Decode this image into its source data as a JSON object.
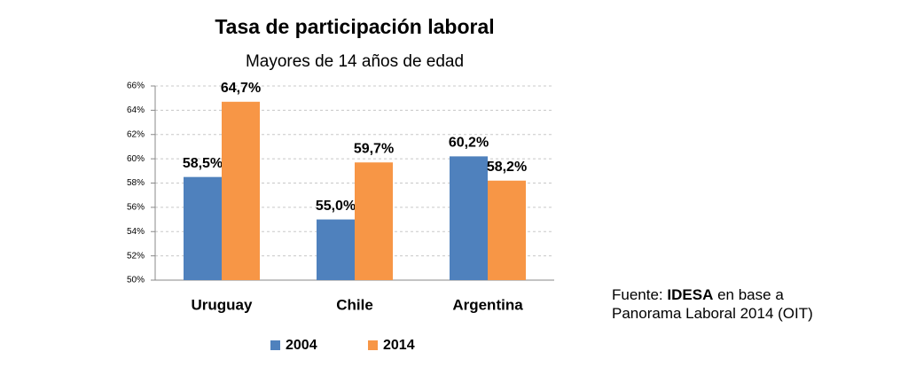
{
  "chart_data": {
    "type": "bar",
    "title": "Tasa de participación laboral",
    "subtitle": "Mayores de 14 años de edad",
    "categories": [
      "Uruguay",
      "Chile",
      "Argentina"
    ],
    "series": [
      {
        "name": "2004",
        "color": "#4f81bd",
        "values": [
          58.5,
          55.0,
          60.2
        ],
        "value_labels": [
          "58,5%",
          "55,0%",
          "60,2%"
        ]
      },
      {
        "name": "2014",
        "color": "#f79646",
        "values": [
          64.7,
          59.7,
          58.2
        ],
        "value_labels": [
          "64,7%",
          "59,7%",
          "58,2%"
        ]
      }
    ],
    "ylim": [
      50,
      66
    ],
    "yticks": [
      {
        "value": 50,
        "label": "50%"
      },
      {
        "value": 52,
        "label": "52%"
      },
      {
        "value": 54,
        "label": "54%"
      },
      {
        "value": 56,
        "label": "56%"
      },
      {
        "value": 58,
        "label": "58%"
      },
      {
        "value": 60,
        "label": "60%"
      },
      {
        "value": 62,
        "label": "62%"
      },
      {
        "value": 64,
        "label": "64%"
      },
      {
        "value": 66,
        "label": "66%"
      }
    ],
    "grid": true,
    "legend": "bottom",
    "source": {
      "prefix": "Fuente:",
      "bold": "IDESA",
      "rest": "en base a Panorama Laboral 2014 (OIT)"
    }
  }
}
